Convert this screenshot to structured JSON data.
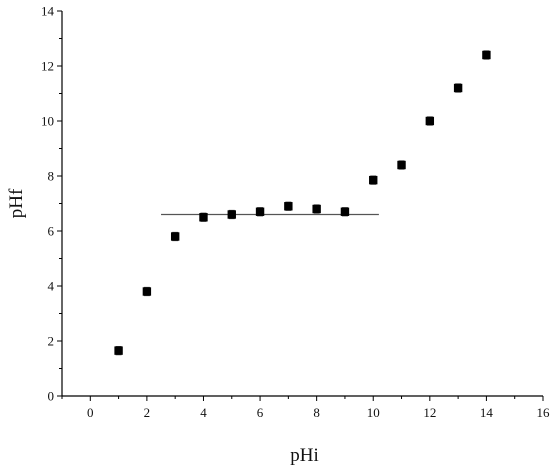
{
  "chart_data": {
    "type": "scatter",
    "title": "",
    "xlabel": "pHi",
    "ylabel": "pHf",
    "xlim": [
      -1,
      16
    ],
    "ylim": [
      0,
      14
    ],
    "x_ticks": [
      0,
      2,
      4,
      6,
      8,
      10,
      12,
      14,
      16
    ],
    "y_ticks": [
      0,
      2,
      4,
      6,
      8,
      10,
      12,
      14
    ],
    "x_tick_labels": [
      "0",
      "2",
      "4",
      "6",
      "8",
      "10",
      "12",
      "14",
      "16"
    ],
    "y_tick_labels": [
      "0",
      "2",
      "4",
      "6",
      "8",
      "10",
      "12",
      "14"
    ],
    "grid": false,
    "legend": "none",
    "marker": "filled-square",
    "error_bars": true,
    "series": [
      {
        "x": [
          1,
          2,
          3,
          4,
          5,
          6,
          7,
          8,
          9,
          10,
          11,
          12,
          13,
          14
        ],
        "y": [
          1.65,
          3.8,
          5.8,
          6.5,
          6.6,
          6.7,
          6.9,
          6.8,
          6.7,
          7.85,
          8.4,
          10.0,
          11.2,
          12.4
        ],
        "error": [
          0.15,
          0.15,
          0.15,
          0.15,
          0.15,
          0.15,
          0.15,
          0.15,
          0.15,
          0.15,
          0.15,
          0.15,
          0.15,
          0.15
        ]
      }
    ],
    "reference_lines": [
      {
        "x": [
          2.5,
          10.2
        ],
        "y": [
          6.6,
          6.6
        ],
        "color": "#555555"
      }
    ],
    "colors": {
      "marker": "#000000",
      "axis": "#000000",
      "line": "#555555"
    }
  }
}
